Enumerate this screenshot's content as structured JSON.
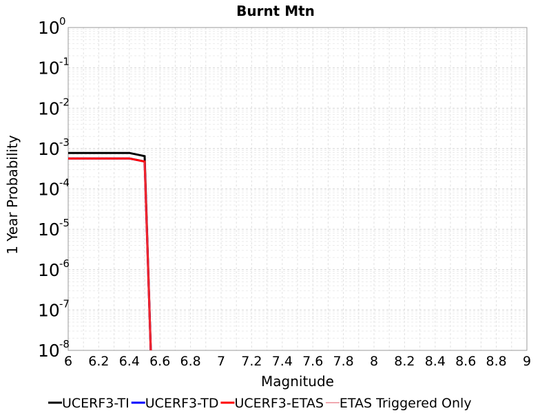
{
  "chart_data": {
    "type": "line",
    "title": "Burnt Mtn",
    "xlabel": "Magnitude",
    "ylabel": "1 Year Probability",
    "xlim": [
      6,
      9
    ],
    "ylim": [
      1e-08,
      1
    ],
    "yscale": "log",
    "grid": true,
    "legend_position": "bottom",
    "x_ticks": [
      "6",
      "6.2",
      "6.4",
      "6.6",
      "6.8",
      "7",
      "7.2",
      "7.4",
      "7.6",
      "7.8",
      "8",
      "8.2",
      "8.4",
      "8.6",
      "8.8",
      "9"
    ],
    "y_ticks": [
      {
        "value": 1,
        "base": "10",
        "exp": "0"
      },
      {
        "value": 0.1,
        "base": "10",
        "exp": "-1"
      },
      {
        "value": 0.01,
        "base": "10",
        "exp": "-2"
      },
      {
        "value": 0.001,
        "base": "10",
        "exp": "-3"
      },
      {
        "value": 0.0001,
        "base": "10",
        "exp": "-4"
      },
      {
        "value": 1e-05,
        "base": "10",
        "exp": "-5"
      },
      {
        "value": 1e-06,
        "base": "10",
        "exp": "-6"
      },
      {
        "value": 1e-07,
        "base": "10",
        "exp": "-7"
      },
      {
        "value": 1e-08,
        "base": "10",
        "exp": "-8"
      }
    ],
    "series": [
      {
        "name": "UCERF3-TI",
        "color": "#000000",
        "width": 3,
        "x": [
          6.0,
          6.1,
          6.2,
          6.3,
          6.4,
          6.5,
          6.54
        ],
        "y": [
          0.00078,
          0.00078,
          0.00078,
          0.00078,
          0.00078,
          0.00065,
          1e-08
        ]
      },
      {
        "name": "UCERF3-TD",
        "color": "#0000ff",
        "width": 3,
        "x": [
          6.0,
          6.1,
          6.2,
          6.3,
          6.4,
          6.5,
          6.54
        ],
        "y": [
          0.00057,
          0.00057,
          0.00057,
          0.00057,
          0.00057,
          0.00048,
          1e-08
        ]
      },
      {
        "name": "UCERF3-ETAS",
        "color": "#ff0000",
        "width": 3,
        "x": [
          6.0,
          6.1,
          6.2,
          6.3,
          6.4,
          6.5,
          6.54
        ],
        "y": [
          0.00057,
          0.00057,
          0.00057,
          0.00057,
          0.00057,
          0.00048,
          1e-08
        ]
      },
      {
        "name": "ETAS Triggered Only",
        "color": "#e05060",
        "width": 1,
        "x": [
          6.5,
          6.54
        ],
        "y": [
          0.00048,
          1e-08
        ]
      }
    ]
  }
}
